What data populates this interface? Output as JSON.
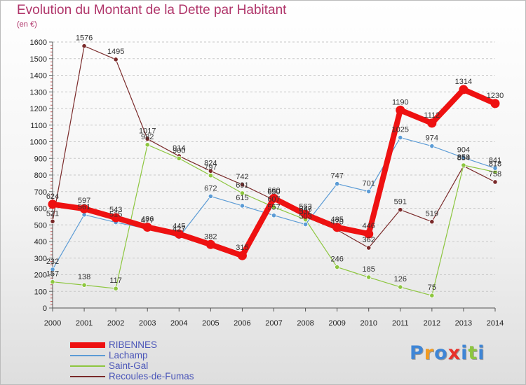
{
  "title": "Evolution du Montant de la Dette par Habitant",
  "unit_label": "(en €)",
  "brand": {
    "text": "Proxiti",
    "letter_colors": [
      "#3f86d6",
      "#f19a20",
      "#3f86d6",
      "#e8312b",
      "#3f86d6",
      "#8dc63f",
      "#3f86d6"
    ]
  },
  "chart_data": {
    "type": "line",
    "title": "Evolution du Montant de la Dette par Habitant",
    "ylabel": "(en €)",
    "xlabel": "",
    "x": [
      "2000",
      "2001",
      "2002",
      "2003",
      "2004",
      "2005",
      "2006",
      "2007",
      "2008",
      "2009",
      "2010",
      "2011",
      "2012",
      "2013",
      "2014"
    ],
    "ylim": [
      0,
      1600
    ],
    "yticks": [
      0,
      100,
      200,
      300,
      400,
      500,
      600,
      700,
      800,
      900,
      1000,
      1100,
      1200,
      1300,
      1400,
      1500,
      1600
    ],
    "grid": "horizontal dashed",
    "legend_position": "bottom-left",
    "series": [
      {
        "name": "RIBENNES",
        "color": "#ee1111",
        "values": [
          624,
          597,
          543,
          486,
          445,
          382,
          315,
          660,
          563,
          485,
          446,
          1190,
          1112,
          1314,
          1230
        ]
      },
      {
        "name": "Lachamp",
        "color": "#5b9bd5",
        "values": [
          232,
          561,
          515,
          477,
          427,
          672,
          615,
          557,
          503,
          747,
          701,
          1025,
          974,
          904,
          841
        ]
      },
      {
        "name": "Saint-Gal",
        "color": "#8dc63f",
        "values": [
          157,
          138,
          117,
          982,
          900,
          797,
          691,
          607,
          532,
          246,
          185,
          126,
          75,
          859,
          818
        ]
      },
      {
        "name": "Recoules-de-Fumas",
        "color": "#7a2a2a",
        "values": [
          521,
          1576,
          1495,
          1017,
          914,
          824,
          742,
          650,
          547,
          470,
          362,
          591,
          519,
          854,
          758
        ]
      }
    ]
  }
}
